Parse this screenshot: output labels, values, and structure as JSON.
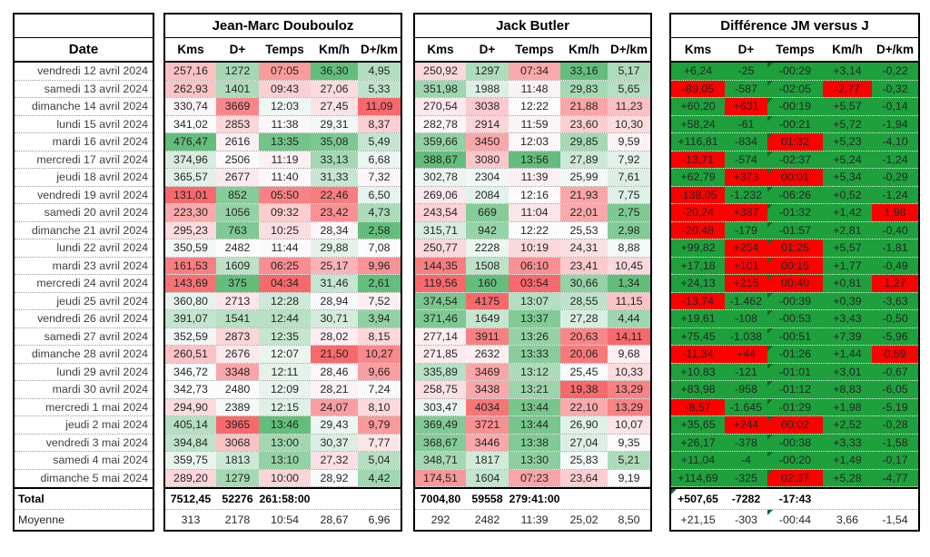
{
  "table": {
    "date_header": "Date",
    "total_label": "Total",
    "moyenne_label": "Moyenne",
    "col_headers": [
      "Kms",
      "D+",
      "Temps",
      "Km/h",
      "D+/km"
    ],
    "dates": [
      "vendredi 12 avril 2024",
      "samedi 13 avril 2024",
      "dimanche 14 avril 2024",
      "lundi 15 avril 2024",
      "mardi 16 avril 2024",
      "mercredi 17 avril 2024",
      "jeudi 18 avril 2024",
      "vendredi 19 avril 2024",
      "samedi 20 avril 2024",
      "dimanche 21 avril 2024",
      "lundi 22 avril 2024",
      "mardi 23 avril 2024",
      "mercredi 24 avril 2024",
      "jeudi 25 avril 2024",
      "vendredi 26 avril 2024",
      "samedi 27 avril 2024",
      "dimanche 28 avril 2024",
      "lundi 29 avril 2024",
      "mardi 30 avril 2024",
      "mercredi 1 mai 2024",
      "jeudi 2 mai 2024",
      "vendredi 3 mai 2024",
      "samedi 4 mai 2024",
      "dimanche 5 mai 2024"
    ],
    "groups": {
      "jm": {
        "title": "Jean-Marc Doubouloz",
        "rows": [
          [
            "257,16",
            "1272",
            "07:05",
            "36,30",
            "4,95"
          ],
          [
            "262,93",
            "1401",
            "09:43",
            "27,06",
            "5,33"
          ],
          [
            "330,74",
            "3669",
            "12:03",
            "27,45",
            "11,09"
          ],
          [
            "341,02",
            "2853",
            "11:38",
            "29,31",
            "8,37"
          ],
          [
            "476,47",
            "2616",
            "13:35",
            "35,08",
            "5,49"
          ],
          [
            "374,96",
            "2506",
            "11:19",
            "33,13",
            "6,68"
          ],
          [
            "365,57",
            "2677",
            "11:40",
            "31,33",
            "7,32"
          ],
          [
            "131,01",
            "852",
            "05:50",
            "22,46",
            "6,50"
          ],
          [
            "223,30",
            "1056",
            "09:32",
            "23,42",
            "4,73"
          ],
          [
            "295,23",
            "763",
            "10:25",
            "28,34",
            "2,58"
          ],
          [
            "350,59",
            "2482",
            "11:44",
            "29,88",
            "7,08"
          ],
          [
            "161,53",
            "1609",
            "06:25",
            "25,17",
            "9,96"
          ],
          [
            "143,69",
            "375",
            "04:34",
            "31,46",
            "2,61"
          ],
          [
            "360,80",
            "2713",
            "12:28",
            "28,94",
            "7,52"
          ],
          [
            "391,07",
            "1541",
            "12:44",
            "30,71",
            "3,94"
          ],
          [
            "352,59",
            "2873",
            "12:35",
            "28,02",
            "8,15"
          ],
          [
            "260,51",
            "2676",
            "12:07",
            "21,50",
            "10,27"
          ],
          [
            "346,72",
            "3348",
            "12:11",
            "28,46",
            "9,66"
          ],
          [
            "342,73",
            "2480",
            "12:09",
            "28,21",
            "7,24"
          ],
          [
            "294,90",
            "2389",
            "12:15",
            "24,07",
            "8,10"
          ],
          [
            "405,14",
            "3965",
            "13:46",
            "29,43",
            "9,79"
          ],
          [
            "394,84",
            "3068",
            "13:00",
            "30,37",
            "7,77"
          ],
          [
            "359,75",
            "1813",
            "13:10",
            "27,32",
            "5,04"
          ],
          [
            "289,20",
            "1279",
            "10:00",
            "28,92",
            "4,42"
          ]
        ],
        "total": [
          "7512,45",
          "52276",
          "261:58:00",
          "",
          ""
        ],
        "moyenne": [
          "313",
          "2178",
          "10:54",
          "28,67",
          "6,96"
        ]
      },
      "jack": {
        "title": "Jack Butler",
        "rows": [
          [
            "250,92",
            "1297",
            "07:34",
            "33,16",
            "5,17"
          ],
          [
            "351,98",
            "1988",
            "11:48",
            "29,83",
            "5,65"
          ],
          [
            "270,54",
            "3038",
            "12:22",
            "21,88",
            "11,23"
          ],
          [
            "282,78",
            "2914",
            "11:59",
            "23,60",
            "10,30"
          ],
          [
            "359,66",
            "3450",
            "12:03",
            "29,85",
            "9,59"
          ],
          [
            "388,67",
            "3080",
            "13:56",
            "27,89",
            "7,92"
          ],
          [
            "302,78",
            "2304",
            "11:39",
            "25,99",
            "7,61"
          ],
          [
            "269,06",
            "2084",
            "12:16",
            "21,93",
            "7,75"
          ],
          [
            "243,54",
            "669",
            "11:04",
            "22,01",
            "2,75"
          ],
          [
            "315,71",
            "942",
            "12:22",
            "25,53",
            "2,98"
          ],
          [
            "250,77",
            "2228",
            "10:19",
            "24,31",
            "8,88"
          ],
          [
            "144,35",
            "1508",
            "06:10",
            "23,41",
            "10,45"
          ],
          [
            "119,56",
            "160",
            "03:54",
            "30,66",
            "1,34"
          ],
          [
            "374,54",
            "4175",
            "13:07",
            "28,55",
            "11,15"
          ],
          [
            "371,46",
            "1649",
            "13:37",
            "27,28",
            "4,44"
          ],
          [
            "277,14",
            "3911",
            "13:26",
            "20,63",
            "14,11"
          ],
          [
            "271,85",
            "2632",
            "13:33",
            "20,06",
            "9,68"
          ],
          [
            "335,89",
            "3469",
            "13:12",
            "25,45",
            "10,33"
          ],
          [
            "258,75",
            "3438",
            "13:21",
            "19,38",
            "13,29"
          ],
          [
            "303,47",
            "4034",
            "13:44",
            "22,10",
            "13,29"
          ],
          [
            "369,49",
            "3721",
            "13:44",
            "26,90",
            "10,07"
          ],
          [
            "368,67",
            "3446",
            "13:38",
            "27,04",
            "9,35"
          ],
          [
            "348,71",
            "1817",
            "13:30",
            "25,83",
            "5,21"
          ],
          [
            "174,51",
            "1604",
            "07:23",
            "23,64",
            "9,19"
          ]
        ],
        "total": [
          "7004,80",
          "59558",
          "279:41:00",
          "",
          ""
        ],
        "moyenne": [
          "292",
          "2482",
          "11:39",
          "25,02",
          "8,50"
        ]
      },
      "diff": {
        "title": "Différence JM versus J",
        "rows": [
          [
            "+6,24",
            "-25",
            "-00:29",
            "+3,14",
            "-0,22"
          ],
          [
            "-89,05",
            "-587",
            "-02:05",
            "-2,77",
            "-0,32"
          ],
          [
            "+60,20",
            "+631",
            "-00:19",
            "+5,57",
            "-0,14"
          ],
          [
            "+58,24",
            "-61",
            "-00:21",
            "+5,72",
            "-1,94"
          ],
          [
            "+116,81",
            "-834",
            "01:32",
            "+5,23",
            "-4,10"
          ],
          [
            "-13,71",
            "-574",
            "-02:37",
            "+5,24",
            "-1,24"
          ],
          [
            "+62,79",
            "+373",
            "00:01",
            "+5,34",
            "-0,29"
          ],
          [
            "-138,05",
            "-1.232",
            "-06:26",
            "+0,52",
            "-1,24"
          ],
          [
            "-20,24",
            "+387",
            "-01:32",
            "+1,42",
            "1,98"
          ],
          [
            "-20,48",
            "-179",
            "-01:57",
            "+2,81",
            "-0,40"
          ],
          [
            "+99,82",
            "+254",
            "01:25",
            "+5,57",
            "-1,81"
          ],
          [
            "+17,18",
            "+101",
            "00:15",
            "+1,77",
            "-0,49"
          ],
          [
            "+24,13",
            "+215",
            "00:40",
            "+0,81",
            "1,27"
          ],
          [
            "-13,74",
            "-1.462",
            "-00:39",
            "+0,39",
            "-3,63"
          ],
          [
            "+19,61",
            "-108",
            "-00:53",
            "+3,43",
            "-0,50"
          ],
          [
            "+75,45",
            "-1.038",
            "-00:51",
            "+7,39",
            "-5,96"
          ],
          [
            "-11,34",
            "+44",
            "-01:26",
            "+1,44",
            "0,59"
          ],
          [
            "+10,83",
            "-121",
            "-01:01",
            "+3,01",
            "-0,67"
          ],
          [
            "+83,98",
            "-958",
            "-01:12",
            "+8,83",
            "-6,05"
          ],
          [
            "-8,57",
            "-1.645",
            "-01:29",
            "+1,98",
            "-5,19"
          ],
          [
            "+35,65",
            "+244",
            "00:02",
            "+2,52",
            "-0,28"
          ],
          [
            "+26,17",
            "-378",
            "-00:38",
            "+3,33",
            "-1,58"
          ],
          [
            "+11,04",
            "-4",
            "-00:20",
            "+1,49",
            "-0,17"
          ],
          [
            "+114,69",
            "-325",
            "02:37",
            "+5,28",
            "-4,77"
          ]
        ],
        "total": [
          "+507,65",
          "-7282",
          "-17:43",
          "",
          ""
        ],
        "moyenne": [
          "+21,15",
          "-303",
          "-00:44",
          "3,66",
          "-1,54"
        ]
      }
    }
  },
  "colors": {
    "scale_min_red": "#F8696B",
    "scale_mid_white": "#FCFCFF",
    "scale_max_green": "#63BE7B",
    "diff_green": "#1EA03C",
    "diff_red": "#FF0000",
    "error_indicator_green": "#106B28"
  }
}
